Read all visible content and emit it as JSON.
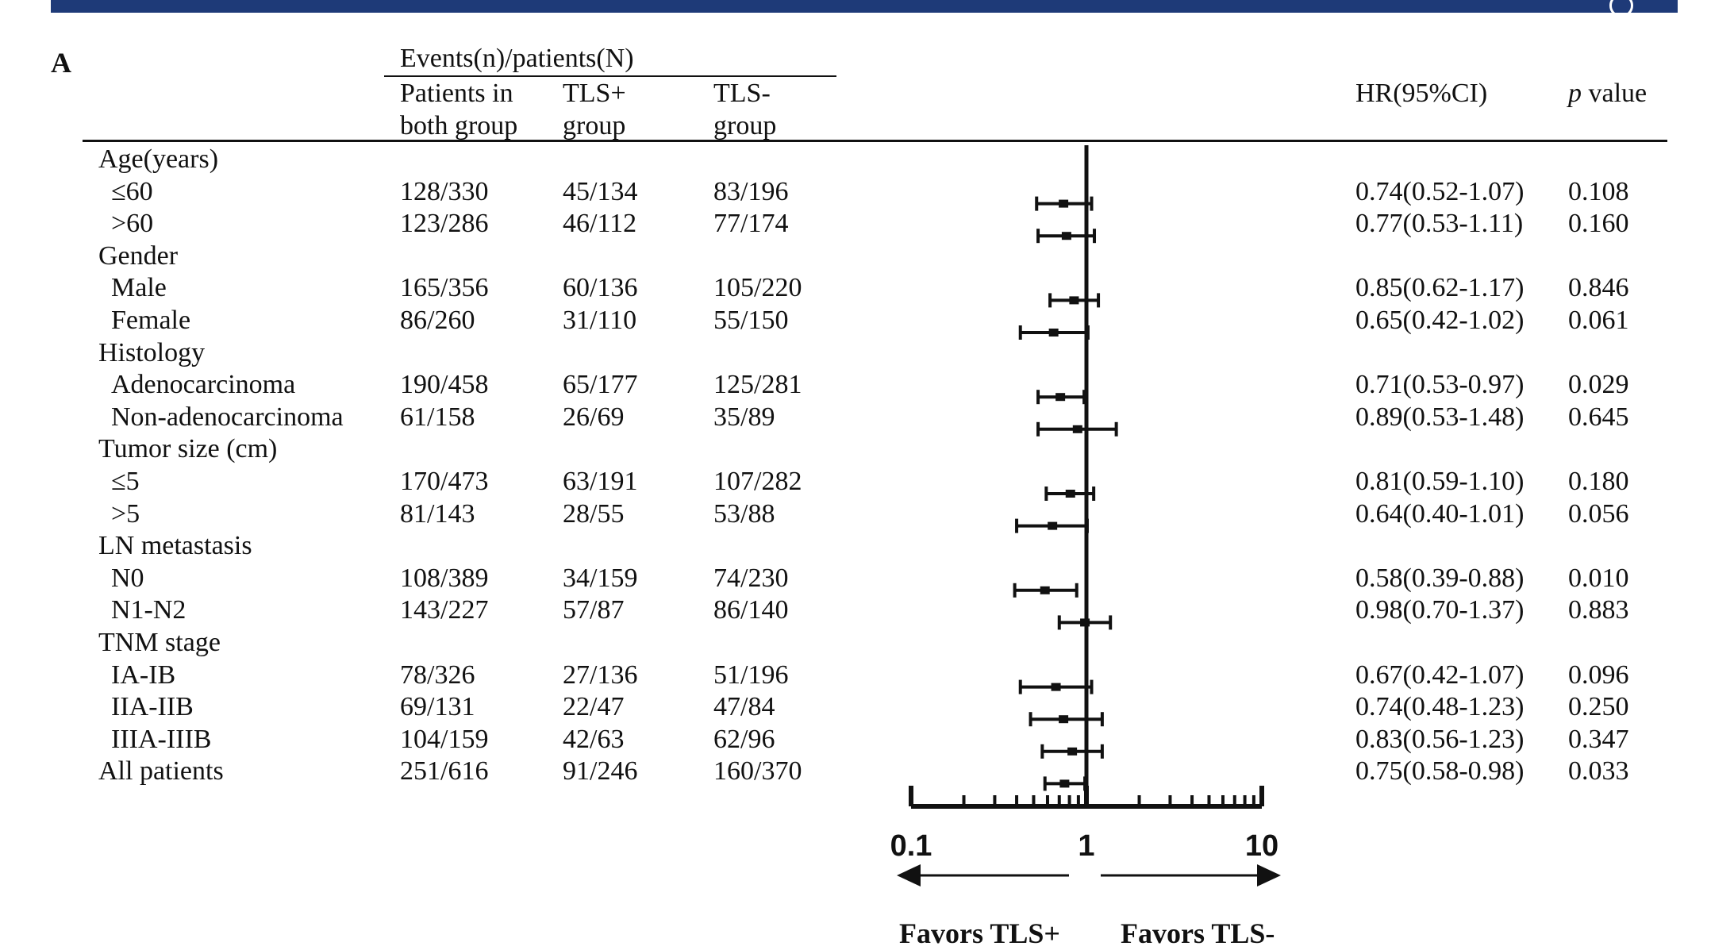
{
  "panel_label": "A",
  "header": {
    "group_title": "Events(n)/patients(N)",
    "col_both": [
      "Patients in",
      "both group"
    ],
    "col_tls_pos": [
      "TLS+",
      "group"
    ],
    "col_tls_neg": [
      "TLS-",
      "group"
    ],
    "col_hr": "HR(95%CI)",
    "col_p_italic": "p",
    "col_p_rest": " value"
  },
  "rows": [
    {
      "label": "Age(years)",
      "indent": false
    },
    {
      "label": "≤60",
      "indent": true,
      "both": "128/330",
      "pos": "45/134",
      "neg": "83/196",
      "hr_text": "0.74(0.52-1.07)",
      "p": "0.108"
    },
    {
      "label": ">60",
      "indent": true,
      "both": "123/286",
      "pos": "46/112",
      "neg": "77/174",
      "hr_text": "0.77(0.53-1.11)",
      "p": "0.160"
    },
    {
      "label": "Gender",
      "indent": false
    },
    {
      "label": "Male",
      "indent": true,
      "both": "165/356",
      "pos": "60/136",
      "neg": "105/220",
      "hr_text": "0.85(0.62-1.17)",
      "p": "0.846"
    },
    {
      "label": "Female",
      "indent": true,
      "both": "86/260",
      "pos": "31/110",
      "neg": "55/150",
      "hr_text": "0.65(0.42-1.02)",
      "p": "0.061"
    },
    {
      "label": "Histology",
      "indent": false
    },
    {
      "label": "Adenocarcinoma",
      "indent": true,
      "both": "190/458",
      "pos": "65/177",
      "neg": "125/281",
      "hr_text": "0.71(0.53-0.97)",
      "p": "0.029"
    },
    {
      "label": "Non-adenocarcinoma",
      "indent": true,
      "both": "61/158",
      "pos": "26/69",
      "neg": "35/89",
      "hr_text": "0.89(0.53-1.48)",
      "p": "0.645"
    },
    {
      "label": "Tumor size (cm)",
      "indent": false
    },
    {
      "label": "≤5",
      "indent": true,
      "both": "170/473",
      "pos": "63/191",
      "neg": "107/282",
      "hr_text": "0.81(0.59-1.10)",
      "p": "0.180"
    },
    {
      "label": ">5",
      "indent": true,
      "both": "81/143",
      "pos": "28/55",
      "neg": "53/88",
      "hr_text": "0.64(0.40-1.01)",
      "p": "0.056"
    },
    {
      "label": "LN metastasis",
      "indent": false
    },
    {
      "label": "N0",
      "indent": true,
      "both": "108/389",
      "pos": "34/159",
      "neg": "74/230",
      "hr_text": "0.58(0.39-0.88)",
      "p": "0.010"
    },
    {
      "label": "N1-N2",
      "indent": true,
      "both": "143/227",
      "pos": "57/87",
      "neg": "86/140",
      "hr_text": "0.98(0.70-1.37)",
      "p": "0.883"
    },
    {
      "label": "TNM stage",
      "indent": false
    },
    {
      "label": "IA-IB",
      "indent": true,
      "both": "78/326",
      "pos": "27/136",
      "neg": "51/196",
      "hr_text": "0.67(0.42-1.07)",
      "p": "0.096"
    },
    {
      "label": "IIA-IIB",
      "indent": true,
      "both": "69/131",
      "pos": "22/47",
      "neg": "47/84",
      "hr_text": "0.74(0.48-1.23)",
      "p": "0.250"
    },
    {
      "label": "IIIA-IIIB",
      "indent": true,
      "both": "104/159",
      "pos": "42/63",
      "neg": "62/96",
      "hr_text": "0.83(0.56-1.23)",
      "p": "0.347"
    },
    {
      "label": "All patients",
      "indent": false,
      "both": "251/616",
      "pos": "91/246",
      "neg": "160/370",
      "hr_text": "0.75(0.58-0.98)",
      "p": "0.033"
    }
  ],
  "favors": {
    "left": "Favors TLS+",
    "right": "Favors TLS-"
  },
  "chart_data": {
    "type": "forest",
    "x_scale": "log",
    "xlim": [
      0.1,
      10
    ],
    "reference_line": 1,
    "ticks": [
      0.1,
      1,
      10
    ],
    "tick_labels": [
      "0.1",
      "1",
      "10"
    ],
    "points": [
      {
        "label": "≤60",
        "hr": 0.74,
        "lower": 0.52,
        "upper": 1.07
      },
      {
        "label": ">60",
        "hr": 0.77,
        "lower": 0.53,
        "upper": 1.11
      },
      {
        "label": "Male",
        "hr": 0.85,
        "lower": 0.62,
        "upper": 1.17
      },
      {
        "label": "Female",
        "hr": 0.65,
        "lower": 0.42,
        "upper": 1.02
      },
      {
        "label": "Adenocarcinoma",
        "hr": 0.71,
        "lower": 0.53,
        "upper": 0.97
      },
      {
        "label": "Non-adenocarcinoma",
        "hr": 0.89,
        "lower": 0.53,
        "upper": 1.48
      },
      {
        "label": "≤5",
        "hr": 0.81,
        "lower": 0.59,
        "upper": 1.1
      },
      {
        "label": ">5",
        "hr": 0.64,
        "lower": 0.4,
        "upper": 1.01
      },
      {
        "label": "N0",
        "hr": 0.58,
        "lower": 0.39,
        "upper": 0.88
      },
      {
        "label": "N1-N2",
        "hr": 0.98,
        "lower": 0.7,
        "upper": 1.37
      },
      {
        "label": "IA-IB",
        "hr": 0.67,
        "lower": 0.42,
        "upper": 1.07
      },
      {
        "label": "IIA-IIB",
        "hr": 0.74,
        "lower": 0.48,
        "upper": 1.23
      },
      {
        "label": "IIIA-IIIB",
        "hr": 0.83,
        "lower": 0.56,
        "upper": 1.23
      },
      {
        "label": "All patients",
        "hr": 0.75,
        "lower": 0.58,
        "upper": 0.98
      }
    ]
  }
}
